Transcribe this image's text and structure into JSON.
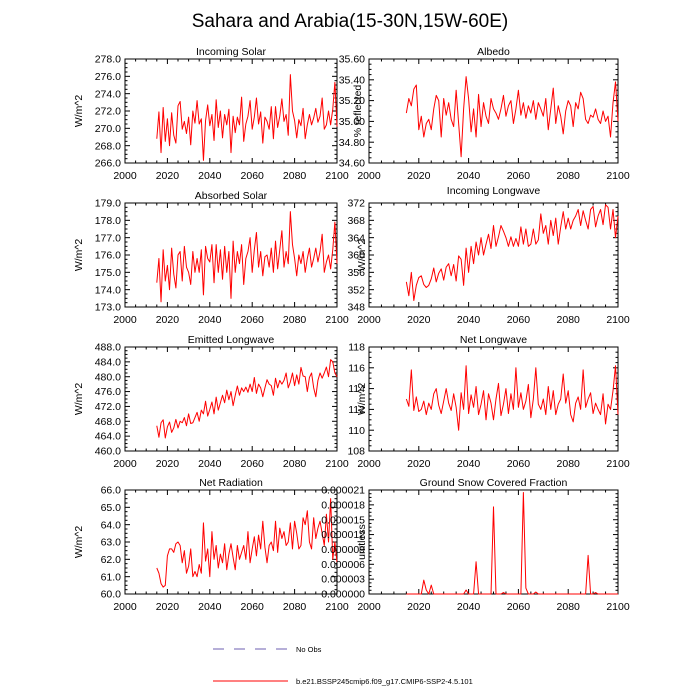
{
  "title": "Sahara and Arabia(15-30N,15W-60E)",
  "colors": {
    "series": "#ff0000",
    "obs": "#6c5fb0",
    "axis": "#000000"
  },
  "legend": {
    "obs_label": "No Obs",
    "model_label": "b.e21.BSSP245cmip6.f09_g17.CMIP6-SSP2-4.5.101"
  },
  "chart_data": [
    {
      "type": "line",
      "title": "Incoming Solar",
      "ylabel": "W/m^2",
      "xlim": [
        2000,
        2100
      ],
      "ylim": [
        266,
        278
      ],
      "xticks": [
        "2000",
        "2020",
        "2040",
        "2060",
        "2080",
        "2100"
      ],
      "yticks": [
        "266.0",
        "268.0",
        "270.0",
        "272.0",
        "274.0",
        "276.0",
        "278.0"
      ],
      "x_start": 2015,
      "values": [
        268.8,
        271.9,
        267.2,
        272.4,
        268.5,
        271.1,
        268.0,
        271.8,
        269.2,
        268.3,
        272.6,
        273.1,
        269.9,
        270.8,
        269.4,
        271.3,
        268.1,
        272.0,
        270.6,
        273.2,
        270.5,
        271.1,
        266.3,
        270.9,
        272.7,
        270.3,
        271.6,
        268.6,
        273.3,
        270.1,
        272.0,
        268.9,
        271.6,
        270.4,
        272.2,
        267.2,
        271.4,
        269.5,
        271.3,
        270.4,
        273.6,
        268.5,
        270.5,
        271.4,
        273.2,
        269.9,
        271.3,
        273.5,
        270.5,
        271.9,
        268.3,
        271.3,
        270.8,
        269.9,
        272.5,
        268.8,
        272.5,
        270.1,
        271.4,
        273.4,
        270.8,
        271.6,
        269.2,
        276.2,
        272.0,
        270.9,
        268.9,
        271.0,
        270.3,
        272.3,
        268.8,
        270.4,
        271.6,
        270.4,
        271.2,
        272.3,
        270.7,
        271.4,
        273.5,
        269.9,
        270.4,
        272.0,
        270.4,
        272.2,
        275.3,
        270.2
      ]
    },
    {
      "type": "line",
      "title": "Albedo",
      "ylabel": "% reflected",
      "xlim": [
        2000,
        2100
      ],
      "ylim": [
        34.6,
        35.6
      ],
      "xticks": [
        "2000",
        "2020",
        "2040",
        "2060",
        "2080",
        "2100"
      ],
      "yticks": [
        "34.60",
        "34.80",
        "35.00",
        "35.20",
        "35.40",
        "35.60"
      ],
      "x_start": 2015,
      "values": [
        35.08,
        35.22,
        35.15,
        35.31,
        35.35,
        34.92,
        35.05,
        34.85,
        34.98,
        35.02,
        34.92,
        35.12,
        35.25,
        35.2,
        34.85,
        35.22,
        35.06,
        35.18,
        35.02,
        34.95,
        35.3,
        34.98,
        34.66,
        35.12,
        35.43,
        35.22,
        34.9,
        35.12,
        34.85,
        35.26,
        34.95,
        35.18,
        35.05,
        34.98,
        35.22,
        35.12,
        35.08,
        35.02,
        35.12,
        35.25,
        35.05,
        35.15,
        35.2,
        34.98,
        35.12,
        35.3,
        35.06,
        35.18,
        35.03,
        35.15,
        35.08,
        35.2,
        35.02,
        35.18,
        35.12,
        35.05,
        35.22,
        34.92,
        35.12,
        35.32,
        34.98,
        35.15,
        35.05,
        34.88,
        35.1,
        35.2,
        35.15,
        34.95,
        35.18,
        35.12,
        35.28,
        35.22,
        35.02,
        34.98,
        35.06,
        35.04,
        35.12,
        35.02,
        34.98,
        35.1,
        35.0,
        35.05,
        34.85,
        35.18,
        35.38,
        35.0
      ]
    },
    {
      "type": "line",
      "title": "Absorbed Solar",
      "ylabel": "W/m^2",
      "xlim": [
        2000,
        2100
      ],
      "ylim": [
        173,
        179
      ],
      "xticks": [
        "2000",
        "2020",
        "2040",
        "2060",
        "2080",
        "2100"
      ],
      "yticks": [
        "173.0",
        "174.0",
        "175.0",
        "176.0",
        "177.0",
        "178.0",
        "179.0"
      ],
      "x_start": 2015,
      "values": [
        174.4,
        175.8,
        173.3,
        176.3,
        174.5,
        175.4,
        174.0,
        176.4,
        174.9,
        174.1,
        176.0,
        176.2,
        174.5,
        176.5,
        175.3,
        175.0,
        174.3,
        176.2,
        175.0,
        175.8,
        175.0,
        176.3,
        173.7,
        176.5,
        175.8,
        175.6,
        176.6,
        174.4,
        176.6,
        175.0,
        176.3,
        174.6,
        176.5,
        175.0,
        176.2,
        173.5,
        176.8,
        175.0,
        176.2,
        175.5,
        176.6,
        174.3,
        175.8,
        176.2,
        177.0,
        175.0,
        176.3,
        177.3,
        175.3,
        176.2,
        174.8,
        175.9,
        176.0,
        175.3,
        176.4,
        175.0,
        176.8,
        175.2,
        176.3,
        177.4,
        175.3,
        176.2,
        175.5,
        178.5,
        176.6,
        175.8,
        174.8,
        176.0,
        175.5,
        176.2,
        175.0,
        175.8,
        176.4,
        175.3,
        175.8,
        176.4,
        175.6,
        176.2,
        177.2,
        175.0,
        175.6,
        176.0,
        175.2,
        176.3,
        177.9,
        175.5
      ]
    },
    {
      "type": "line",
      "title": "Incoming Longwave",
      "ylabel": "W/m^2",
      "xlim": [
        2000,
        2100
      ],
      "ylim": [
        348,
        372
      ],
      "xticks": [
        "2000",
        "2020",
        "2040",
        "2060",
        "2080",
        "2100"
      ],
      "yticks": [
        "348",
        "352",
        "356",
        "360",
        "364",
        "368",
        "372"
      ],
      "x_start": 2015,
      "values": [
        353.8,
        350.6,
        356.0,
        349.5,
        353.0,
        354.8,
        355.2,
        353.2,
        352.5,
        353.0,
        354.5,
        357.0,
        353.8,
        355.8,
        356.8,
        354.2,
        357.2,
        358.0,
        355.2,
        357.8,
        354.0,
        359.8,
        359.0,
        353.0,
        361.6,
        356.0,
        362.0,
        358.0,
        363.0,
        360.0,
        364.0,
        360.0,
        362.5,
        364.8,
        361.5,
        366.8,
        362.0,
        364.2,
        366.8,
        365.5,
        364.0,
        362.0,
        364.2,
        362.0,
        363.8,
        362.0,
        366.5,
        362.5,
        366.0,
        362.0,
        362.5,
        366.0,
        362.5,
        363.5,
        369.5,
        365.0,
        366.8,
        362.5,
        368.0,
        364.5,
        368.5,
        362.5,
        366.5,
        370.0,
        366.0,
        368.5,
        366.0,
        368.0,
        369.0,
        370.5,
        366.8,
        370.2,
        368.0,
        366.0,
        370.5,
        371.2,
        366.5,
        369.0,
        370.5,
        367.0,
        371.6,
        371.0,
        366.0,
        370.5,
        364.0,
        369.0
      ]
    },
    {
      "type": "line",
      "title": "Emitted Longwave",
      "ylabel": "W/m^2",
      "xlim": [
        2000,
        2100
      ],
      "ylim": [
        460,
        488
      ],
      "xticks": [
        "2000",
        "2020",
        "2040",
        "2060",
        "2080",
        "2100"
      ],
      "yticks": [
        "460.0",
        "464.0",
        "468.0",
        "472.0",
        "476.0",
        "480.0",
        "484.0",
        "488.0"
      ],
      "x_start": 2015,
      "values": [
        466.8,
        463.7,
        467.6,
        468.4,
        463.5,
        466.5,
        467.8,
        465.0,
        466.2,
        468.5,
        466.2,
        468.0,
        467.6,
        469.0,
        466.8,
        470.0,
        467.4,
        467.6,
        469.0,
        470.4,
        468.0,
        471.0,
        470.0,
        473.4,
        469.4,
        471.2,
        473.2,
        470.0,
        474.5,
        471.0,
        473.0,
        475.0,
        473.0,
        476.4,
        473.8,
        476.0,
        472.2,
        475.0,
        477.5,
        475.0,
        477.0,
        476.0,
        477.2,
        475.8,
        478.0,
        476.0,
        479.8,
        475.5,
        478.0,
        477.0,
        474.6,
        477.0,
        479.2,
        478.0,
        477.6,
        475.0,
        479.6,
        477.0,
        479.0,
        478.0,
        479.0,
        481.0,
        477.0,
        478.6,
        481.0,
        477.6,
        480.5,
        478.0,
        482.5,
        480.2,
        480.0,
        476.0,
        479.8,
        481.0,
        477.0,
        474.6,
        479.0,
        481.0,
        479.6,
        481.0,
        482.6,
        480.0,
        484.6,
        484.0,
        481.0,
        480.0
      ]
    },
    {
      "type": "line",
      "title": "Net Longwave",
      "ylabel": "W/m^2",
      "xlim": [
        2000,
        2100
      ],
      "ylim": [
        108,
        118
      ],
      "xticks": [
        "2000",
        "2020",
        "2040",
        "2060",
        "2080",
        "2100"
      ],
      "yticks": [
        "108",
        "110",
        "112",
        "114",
        "116",
        "118"
      ],
      "x_start": 2015,
      "values": [
        113.0,
        112.3,
        115.8,
        111.9,
        113.2,
        111.8,
        112.0,
        112.8,
        111.5,
        112.6,
        112.0,
        113.5,
        114.0,
        112.4,
        111.6,
        112.8,
        114.0,
        112.6,
        111.9,
        113.5,
        112.2,
        110.0,
        113.6,
        112.0,
        116.2,
        111.6,
        113.4,
        112.2,
        114.2,
        111.5,
        112.5,
        113.8,
        111.0,
        113.5,
        112.6,
        111.0,
        113.0,
        114.5,
        111.4,
        112.5,
        114.0,
        111.6,
        113.5,
        112.0,
        116.0,
        112.2,
        113.6,
        112.0,
        112.8,
        114.4,
        111.2,
        113.0,
        116.0,
        112.5,
        112.0,
        113.0,
        111.5,
        114.2,
        112.0,
        113.8,
        111.5,
        112.5,
        113.0,
        115.4,
        112.6,
        113.8,
        111.5,
        110.8,
        112.6,
        113.2,
        112.0,
        115.8,
        112.2,
        113.0,
        113.6,
        111.6,
        112.6,
        112.0,
        111.5,
        113.5,
        110.6,
        112.5,
        112.0,
        113.8,
        116.2,
        111.5
      ]
    },
    {
      "type": "line",
      "title": "Net Radiation",
      "ylabel": "W/m^2",
      "xlim": [
        2000,
        2100
      ],
      "ylim": [
        60,
        66
      ],
      "xticks": [
        "2000",
        "2020",
        "2040",
        "2060",
        "2080",
        "2100"
      ],
      "yticks": [
        "60.0",
        "61.0",
        "62.0",
        "63.0",
        "64.0",
        "65.0",
        "66.0"
      ],
      "x_start": 2015,
      "values": [
        61.5,
        61.2,
        60.6,
        60.4,
        60.5,
        62.2,
        62.6,
        62.6,
        62.4,
        62.9,
        63.0,
        62.8,
        61.8,
        62.5,
        61.2,
        61.6,
        62.6,
        61.0,
        61.3,
        61.0,
        61.7,
        61.2,
        64.1,
        61.9,
        62.6,
        61.0,
        63.6,
        62.0,
        62.8,
        61.5,
        62.3,
        61.8,
        62.9,
        61.4,
        62.3,
        62.9,
        62.1,
        61.4,
        62.8,
        62.0,
        62.4,
        62.8,
        62.0,
        63.6,
        61.8,
        62.6,
        63.3,
        62.2,
        63.4,
        62.6,
        64.2,
        62.7,
        61.8,
        62.8,
        63.0,
        62.5,
        64.2,
        62.4,
        63.8,
        63.2,
        63.6,
        62.8,
        63.0,
        64.1,
        62.6,
        64.2,
        63.5,
        62.6,
        62.8,
        64.4,
        64.0,
        64.8,
        63.0,
        62.6,
        64.4,
        63.2,
        63.8,
        64.2,
        63.5,
        62.8,
        64.6,
        63.0,
        65.5,
        62.0,
        63.0,
        61.8
      ]
    },
    {
      "type": "line",
      "title": "Ground Snow Covered Fraction",
      "ylabel": "unitless",
      "xlim": [
        2000,
        2100
      ],
      "ylim": [
        0,
        2.1e-05
      ],
      "xticks": [
        "2000",
        "2020",
        "2040",
        "2060",
        "2080",
        "2100"
      ],
      "yticks": [
        "0.000000",
        "0.000003",
        "0.000006",
        "0.000009",
        "0.000012",
        "0.000015",
        "0.000018",
        "0.000021"
      ],
      "x_start": 2015,
      "values": [
        0,
        0,
        0,
        0,
        0,
        0,
        0,
        2.8e-06,
        8e-07,
        0,
        1.8e-06,
        0,
        0,
        0,
        0,
        0,
        0,
        0,
        0,
        0,
        0,
        0,
        0,
        0,
        8e-07,
        0,
        0,
        0,
        6.5e-06,
        0,
        0,
        0,
        0,
        0,
        0,
        1.76e-05,
        0,
        0,
        0,
        3e-07,
        0,
        0,
        0,
        0,
        0,
        0,
        0,
        2.05e-05,
        1.2e-06,
        0,
        0,
        0,
        4e-07,
        0,
        0,
        0,
        0,
        0,
        0,
        0,
        0,
        0,
        0,
        0,
        0,
        0,
        0,
        0,
        0,
        0,
        0,
        0,
        0,
        7.8e-06,
        0,
        0,
        3e-07,
        0,
        0,
        0,
        0,
        0,
        0,
        0,
        0,
        0
      ]
    }
  ]
}
